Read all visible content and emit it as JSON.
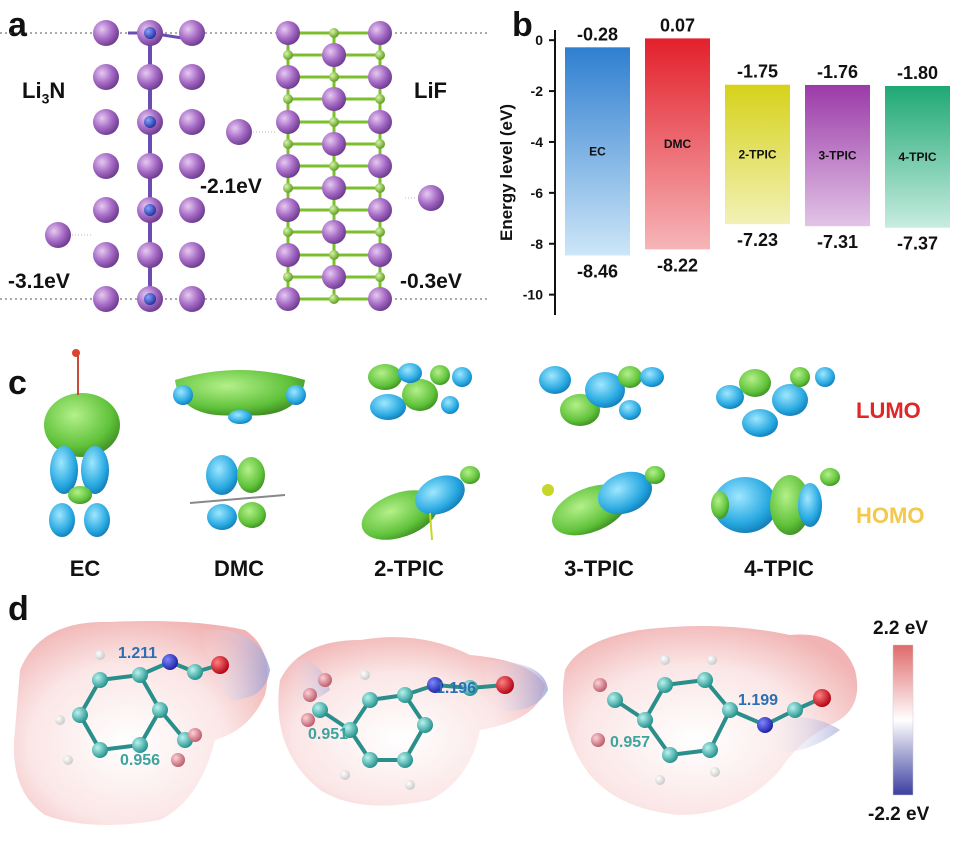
{
  "panels": {
    "a": "a",
    "b": "b",
    "c": "c",
    "d": "d"
  },
  "panel_a": {
    "left_label_main": "Li",
    "left_label_sub": "3",
    "left_label_tail": "N",
    "right_label": "LiF",
    "energy_left_bottom": "-3.1eV",
    "energy_middle": "-2.1eV",
    "energy_right_bottom": "-0.3eV"
  },
  "panel_b": {
    "chart_data": {
      "type": "bar",
      "title": "",
      "ylabel": "Energy level (eV)",
      "ylim": [
        -10.8,
        0.4
      ],
      "yticks": [
        "0",
        "-2",
        "-4",
        "-6",
        "-8",
        "-10"
      ],
      "categories": [
        "EC",
        "DMC",
        "2-TPIC",
        "3-TPIC",
        "4-TPIC"
      ],
      "lumo": [
        -0.28,
        0.07,
        -1.75,
        -1.76,
        -1.8
      ],
      "homo": [
        -8.46,
        -8.22,
        -7.23,
        -7.31,
        -7.37
      ],
      "lumo_labels": [
        "-0.28",
        "0.07",
        "-1.75",
        "-1.76",
        "-1.80"
      ],
      "homo_labels": [
        "-8.46",
        "-8.22",
        "-7.23",
        "-7.31",
        "-7.37"
      ],
      "colors_top": [
        "#2f7fd0",
        "#e3202b",
        "#d6d21a",
        "#9b3aa8",
        "#1fa874"
      ],
      "colors_bottom": [
        "#cde6f8",
        "#f6b5b8",
        "#f2f1b6",
        "#e2c4e6",
        "#c7ece0"
      ]
    }
  },
  "panel_c": {
    "lumo_label": "LUMO",
    "homo_label": "HOMO",
    "molecules": [
      "EC",
      "DMC",
      "2-TPIC",
      "3-TPIC",
      "4-TPIC"
    ]
  },
  "panel_d": {
    "bonds": [
      {
        "top": "1.211",
        "bottom": "0.956"
      },
      {
        "top": "1.196",
        "bottom": "0.951"
      },
      {
        "top": "1.199",
        "bottom": "0.957"
      }
    ],
    "scale_max": "2.2 eV",
    "scale_min": "-2.2 eV"
  }
}
